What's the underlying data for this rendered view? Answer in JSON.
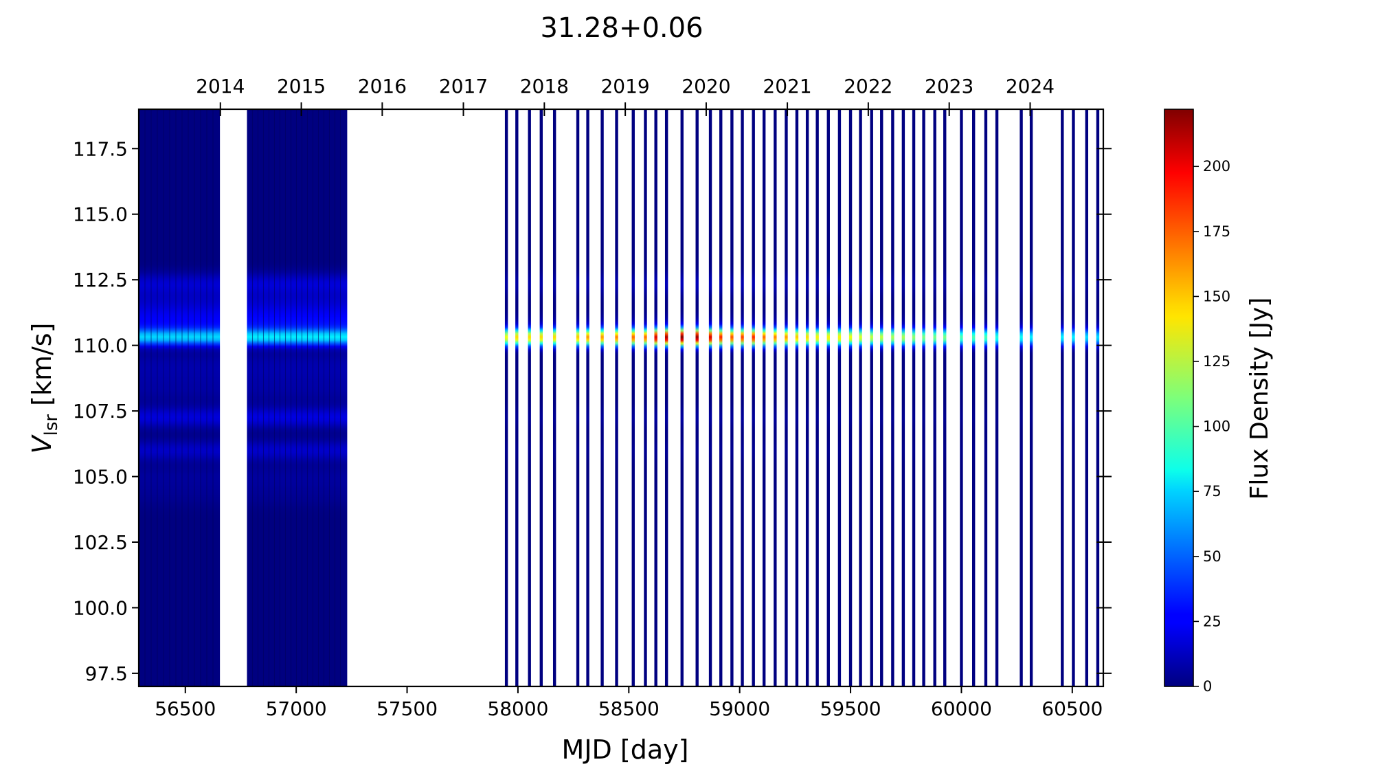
{
  "chart_data": {
    "type": "heatmap",
    "title": "31.28+0.06",
    "xlabel": "MJD [day]",
    "ylabel_main": "V",
    "ylabel_sub": "lsr",
    "ylabel_unit": " [km/s]",
    "xlim": [
      56290,
      60640
    ],
    "ylim": [
      97.0,
      119.0
    ],
    "xticks": [
      56500,
      57000,
      57500,
      58000,
      58500,
      59000,
      59500,
      60000,
      60500
    ],
    "xtick_labels": [
      "56500",
      "57000",
      "57500",
      "58000",
      "58500",
      "59000",
      "59500",
      "60000",
      "60500"
    ],
    "yticks": [
      97.5,
      100.0,
      102.5,
      105.0,
      107.5,
      110.0,
      112.5,
      115.0,
      117.5
    ],
    "ytick_labels": [
      "97.5",
      "100.0",
      "102.5",
      "105.0",
      "107.5",
      "110.0",
      "112.5",
      "115.0",
      "117.5"
    ],
    "top_axis": {
      "labels": [
        "2014",
        "2015",
        "2016",
        "2017",
        "2018",
        "2019",
        "2020",
        "2021",
        "2022",
        "2023",
        "2024"
      ],
      "mjd": [
        56658,
        57023,
        57388,
        57754,
        58119,
        58484,
        58849,
        59215,
        59580,
        59945,
        60310
      ]
    },
    "colorbar": {
      "label": "Flux Density [Jy]",
      "min": 0,
      "max": 222,
      "ticks": [
        0,
        25,
        50,
        75,
        100,
        125,
        150,
        175,
        200
      ],
      "tick_labels": [
        "0",
        "25",
        "50",
        "75",
        "100",
        "125",
        "150",
        "175",
        "200"
      ],
      "colormap": "jet"
    },
    "observation_blocks": [
      {
        "mjd_start": 56290,
        "mjd_end": 56656,
        "peak_flux": 70
      },
      {
        "mjd_start": 56778,
        "mjd_end": 57230,
        "peak_flux": 75
      }
    ],
    "observation_mjd": [
      57948,
      57995,
      58052,
      58105,
      58165,
      58270,
      58315,
      58380,
      58445,
      58520,
      58575,
      58622,
      58670,
      58740,
      58808,
      58868,
      58915,
      58965,
      59012,
      59062,
      59110,
      59160,
      59210,
      59258,
      59305,
      59350,
      59400,
      59450,
      59500,
      59545,
      59595,
      59640,
      59690,
      59738,
      59785,
      59830,
      59880,
      59925,
      60000,
      60055,
      60110,
      60160,
      60270,
      60315,
      60455,
      60505,
      60565,
      60615
    ],
    "observation_peak_flux": [
      135,
      145,
      145,
      145,
      145,
      150,
      160,
      160,
      165,
      170,
      170,
      200,
      210,
      220,
      215,
      200,
      185,
      175,
      180,
      185,
      170,
      165,
      160,
      150,
      145,
      140,
      140,
      140,
      135,
      130,
      125,
      125,
      120,
      120,
      115,
      110,
      110,
      110,
      100,
      100,
      100,
      90,
      85,
      80,
      80,
      80,
      75,
      75
    ],
    "spectral_components": [
      {
        "v": 110.3,
        "width": 0.22,
        "rel_block": 1.0,
        "rel_late": 1.0
      },
      {
        "v": 110.75,
        "width": 0.28,
        "rel_block": 0.22,
        "rel_late": 0.06
      },
      {
        "v": 111.1,
        "width": 0.3,
        "rel_block": 0.2,
        "rel_late": 0.0
      },
      {
        "v": 111.6,
        "width": 0.35,
        "rel_block": 0.18,
        "rel_late": 0.0
      },
      {
        "v": 112.35,
        "width": 0.3,
        "rel_block": 0.24,
        "rel_late": 0.06
      },
      {
        "v": 109.2,
        "width": 0.45,
        "rel_block": 0.13,
        "rel_late": 0.0
      },
      {
        "v": 108.3,
        "width": 0.4,
        "rel_block": 0.09,
        "rel_late": 0.0
      },
      {
        "v": 107.25,
        "width": 0.28,
        "rel_block": 0.28,
        "rel_late": 0.03
      },
      {
        "v": 106.0,
        "width": 0.28,
        "rel_block": 0.22,
        "rel_late": 0.02
      },
      {
        "v": 105.0,
        "width": 0.35,
        "rel_block": 0.08,
        "rel_late": 0.0
      },
      {
        "v": 104.3,
        "width": 0.35,
        "rel_block": 0.05,
        "rel_late": 0.0
      }
    ]
  }
}
